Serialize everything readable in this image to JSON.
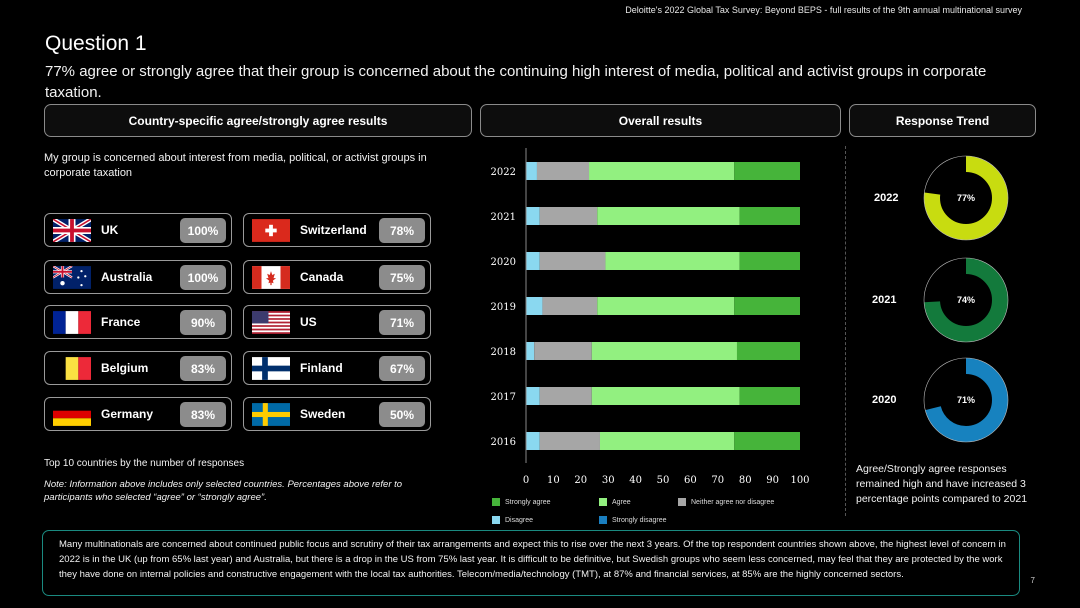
{
  "header": {
    "source": "Deloitte's 2022 Global Tax Survey: Beyond BEPS  - full results of the 9th annual multinational survey"
  },
  "question": {
    "title": "Question 1",
    "subtitle": "77% agree or strongly agree that their group is concerned about the continuing high interest of media, political and activist groups in corporate taxation."
  },
  "sections": {
    "country": "Country-specific agree/strongly agree results",
    "overall": "Overall results",
    "trend": "Response Trend"
  },
  "intro": "My group is concerned about interest from media, political, or activist groups in corporate taxation",
  "countries_left": [
    {
      "name": "UK",
      "pct": "100%",
      "flag": "uk-flag-icon"
    },
    {
      "name": "Australia",
      "pct": "100%",
      "flag": "australia-flag-icon"
    },
    {
      "name": "France",
      "pct": "90%",
      "flag": "france-flag-icon"
    },
    {
      "name": "Belgium",
      "pct": "83%",
      "flag": "belgium-flag-icon"
    },
    {
      "name": "Germany",
      "pct": "83%",
      "flag": "germany-flag-icon"
    }
  ],
  "countries_right": [
    {
      "name": "Switzerland",
      "pct": "78%",
      "flag": "switzerland-flag-icon"
    },
    {
      "name": "Canada",
      "pct": "75%",
      "flag": "canada-flag-icon"
    },
    {
      "name": "US",
      "pct": "71%",
      "flag": "us-flag-icon"
    },
    {
      "name": "Finland",
      "pct": "67%",
      "flag": "finland-flag-icon"
    },
    {
      "name": "Sweden",
      "pct": "50%",
      "flag": "sweden-flag-icon"
    }
  ],
  "notes": {
    "top10": "Top 10 countries by the number of responses",
    "info": "Note: Information above includes only selected countries. Percentages above refer to participants who selected “agree” or “strongly agree”."
  },
  "chart_data": [
    {
      "type": "bar",
      "orientation": "horizontal",
      "stacked": true,
      "categories": [
        "2022",
        "2021",
        "2020",
        "2019",
        "2018",
        "2017",
        "2016"
      ],
      "xlim": [
        0,
        100
      ],
      "xticks": [
        "0",
        "10",
        "20",
        "30",
        "40",
        "50",
        "60",
        "70",
        "80",
        "90",
        "100"
      ],
      "series": [
        {
          "name": "Strongly disagree",
          "color": "#1a7fc0",
          "values": [
            0,
            0,
            0,
            0,
            0,
            0,
            0
          ]
        },
        {
          "name": "Disagree",
          "color": "#8ad8f0",
          "values": [
            4,
            5,
            5,
            6,
            3,
            5,
            5
          ]
        },
        {
          "name": "Neither agree nor disagree",
          "color": "#a6a6a6",
          "values": [
            19,
            21,
            24,
            20,
            21,
            19,
            22
          ]
        },
        {
          "name": "Agree",
          "color": "#92f080",
          "values": [
            53,
            52,
            49,
            50,
            53,
            54,
            49
          ]
        },
        {
          "name": "Strongly agree",
          "color": "#46b43a",
          "values": [
            24,
            22,
            22,
            24,
            23,
            22,
            24
          ]
        }
      ],
      "legend_order": [
        "Strongly agree",
        "Agree",
        "Neither agree nor disagree",
        "Disagree",
        "Strongly disagree"
      ],
      "legend_placement": "bottom"
    },
    {
      "type": "pie",
      "variant": "donut",
      "items": [
        {
          "year": "2022",
          "value": 77,
          "label": "77%",
          "color": "#c8dc10"
        },
        {
          "year": "2021",
          "value": 74,
          "label": "74%",
          "color": "#137a3c"
        },
        {
          "year": "2020",
          "value": 71,
          "label": "71%",
          "color": "#1782bf"
        }
      ]
    }
  ],
  "trend_note": "Agree/Strongly agree responses remained high and have increased 3 percentage points compared to 2021",
  "bottom_text": "Many multinationals are concerned about continued public focus and scrutiny of their tax arrangements and expect this to rise over the next 3 years. Of the top respondent countries shown above, the highest level of concern in 2022 is in the UK (up from 65% last year) and Australia, but there is a drop in the US from 75% last year. It is difficult to be definitive, but Swedish groups who seem less concerned, may feel that they are protected by the work they have done on internal policies and constructive engagement with the local tax authorities. Telecom/media/technology (TMT), at 87% and financial services, at 85% are the highly concerned sectors.",
  "page_number": "7"
}
